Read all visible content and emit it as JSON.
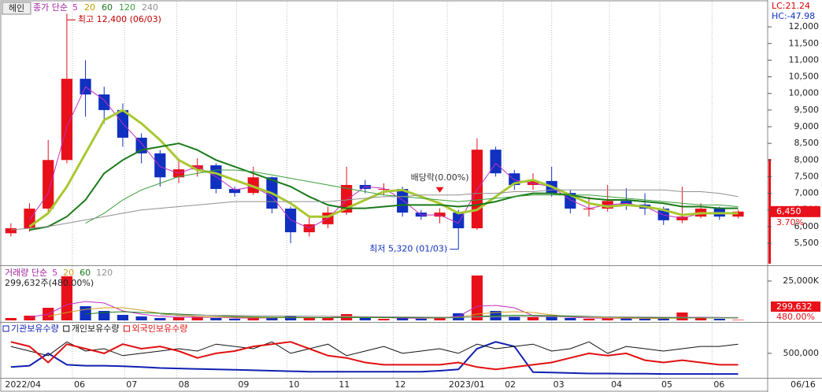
{
  "toolbar": {
    "button": "헤인"
  },
  "right_labels": {
    "lc": "LC:21.24",
    "hc": "HC:-47.98",
    "current_price": "6,450",
    "change": "3.70%",
    "current_volume": "299,632",
    "volume_ratio": "480.00%",
    "last_date": "06/16"
  },
  "chart_data": [
    {
      "type": "candlestick",
      "legend_prefix": "종가 단순",
      "up_color": "#e8101a",
      "down_color": "#1030c0",
      "xlim": [
        -0.5,
        40.5
      ],
      "xticks": [
        {
          "value": -0.4,
          "label": "2022/04"
        },
        {
          "value": 3.3,
          "label": "06"
        },
        {
          "value": 6.1,
          "label": "07"
        },
        {
          "value": 8.9,
          "label": "08"
        },
        {
          "value": 12.1,
          "label": "09"
        },
        {
          "value": 14.8,
          "label": "10"
        },
        {
          "value": 17.5,
          "label": "11"
        },
        {
          "value": 20.5,
          "label": "12"
        },
        {
          "value": 23.4,
          "label": "2023/01"
        },
        {
          "value": 26.4,
          "label": "02"
        },
        {
          "value": 29.0,
          "label": "03"
        },
        {
          "value": 32.1,
          "label": "04"
        },
        {
          "value": 34.8,
          "label": "05"
        },
        {
          "value": 37.6,
          "label": "06"
        }
      ],
      "ylim": [
        4885,
        12760
      ],
      "yticks": [
        {
          "value": 5500,
          "label": "5,500"
        },
        {
          "value": 6000,
          "label": "6,000"
        },
        {
          "value": 6500,
          "label": "6,500"
        },
        {
          "value": 7000,
          "label": "7,000"
        },
        {
          "value": 7500,
          "label": "7,500"
        },
        {
          "value": 8000,
          "label": "8,000"
        },
        {
          "value": 8500,
          "label": "8,500"
        },
        {
          "value": 9000,
          "label": "9,000"
        },
        {
          "value": 9500,
          "label": "9,500"
        },
        {
          "value": 10000,
          "label": "10,000"
        },
        {
          "value": 10500,
          "label": "10,500"
        },
        {
          "value": 11000,
          "label": "11,000"
        },
        {
          "value": 11500,
          "label": "11,500"
        },
        {
          "value": 12000,
          "label": "12,000"
        }
      ],
      "open": [
        5800,
        5950,
        6540,
        8000,
        10440,
        9970,
        9500,
        8670,
        8200,
        7480,
        7720,
        7840,
        7130,
        7010,
        7480,
        6540,
        5830,
        6070,
        6420,
        7250,
        7130,
        7130,
        6420,
        6300,
        6420,
        5950,
        8310,
        7600,
        7250,
        7370,
        7010,
        6540,
        6540,
        6770,
        6660,
        6540,
        6190,
        6300,
        6540,
        6300
      ],
      "high": [
        6100,
        6700,
        8600,
        12400,
        11000,
        10200,
        9700,
        8800,
        8300,
        8000,
        8050,
        7900,
        7200,
        7800,
        7500,
        6600,
        6300,
        6600,
        7800,
        7400,
        7300,
        7200,
        6500,
        6550,
        6500,
        8650,
        8400,
        7700,
        7600,
        7800,
        7100,
        6900,
        7250,
        7150,
        7000,
        6600,
        7200,
        6700,
        6600,
        6500
      ],
      "low": [
        5700,
        5850,
        6400,
        7900,
        9300,
        9100,
        8400,
        7900,
        7200,
        7300,
        7500,
        7000,
        6900,
        6950,
        6400,
        5500,
        5700,
        5950,
        6350,
        7000,
        6950,
        6300,
        6200,
        6100,
        5320,
        5900,
        7500,
        7100,
        7100,
        6900,
        6400,
        6300,
        6450,
        6500,
        6350,
        6050,
        6100,
        6250,
        6200,
        6250
      ],
      "close": [
        5950,
        6540,
        8000,
        10440,
        9970,
        9500,
        8670,
        8200,
        7480,
        7720,
        7840,
        7130,
        7010,
        7480,
        6540,
        5830,
        6070,
        6420,
        7250,
        7130,
        7130,
        6420,
        6300,
        6420,
        5950,
        8310,
        7600,
        7250,
        7370,
        7010,
        6540,
        6540,
        6770,
        6660,
        6540,
        6190,
        6300,
        6540,
        6300,
        6450
      ],
      "series": [
        {
          "name": "5",
          "color": "#c030c0",
          "width": 1,
          "values": [
            null,
            6200,
            7000,
            9000,
            10200,
            9800,
            9100,
            8500,
            7800,
            7600,
            7800,
            7500,
            7100,
            7200,
            6900,
            6200,
            5950,
            6250,
            6800,
            7200,
            7150,
            6800,
            6350,
            6350,
            6100,
            7100,
            7900,
            7400,
            7300,
            7200,
            6800,
            6550,
            6650,
            6700,
            6600,
            6350,
            6250,
            6400,
            6400,
            6400
          ]
        },
        {
          "name": "20",
          "color": "#a8c832",
          "width": 3,
          "values": [
            null,
            6000,
            6400,
            7200,
            8200,
            9200,
            9500,
            9100,
            8600,
            8000,
            7700,
            7600,
            7400,
            7200,
            7000,
            6700,
            6300,
            6300,
            6550,
            6800,
            7050,
            7100,
            6900,
            6700,
            6400,
            6500,
            6900,
            7300,
            7400,
            7200,
            6950,
            6700,
            6600,
            6650,
            6600,
            6500,
            6350,
            6400,
            6400,
            6400
          ]
        },
        {
          "name": "60",
          "color": "#1a7a1a",
          "width": 2,
          "values": [
            null,
            5900,
            6000,
            6300,
            6800,
            7600,
            8000,
            8300,
            8400,
            8500,
            8300,
            8000,
            7800,
            7600,
            7400,
            7200,
            6900,
            6650,
            6550,
            6550,
            6600,
            6650,
            6650,
            6650,
            6600,
            6650,
            6750,
            6900,
            7000,
            7000,
            6950,
            6850,
            6800,
            6800,
            6750,
            6700,
            6600,
            6600,
            6550,
            6550
          ]
        },
        {
          "name": "120",
          "color": "#3aa03a",
          "width": 1,
          "values": [
            null,
            null,
            null,
            null,
            6100,
            6400,
            6800,
            7100,
            7300,
            7500,
            7600,
            7700,
            7700,
            7650,
            7550,
            7450,
            7350,
            7250,
            7150,
            7050,
            6950,
            6900,
            6850,
            6800,
            6750,
            6800,
            6850,
            6900,
            6950,
            6950,
            6950,
            6950,
            6900,
            6850,
            6800,
            6750,
            6700,
            6650,
            6650,
            6600
          ]
        },
        {
          "name": "240",
          "color": "#909090",
          "width": 1,
          "values": [
            5900,
            5950,
            6000,
            6100,
            6200,
            6300,
            6400,
            6500,
            6550,
            6600,
            6650,
            6700,
            6750,
            6750,
            6750,
            6750,
            6750,
            6750,
            6800,
            6850,
            6900,
            6900,
            6950,
            6950,
            6950,
            7000,
            7000,
            7050,
            7050,
            7100,
            7100,
            7100,
            7100,
            7100,
            7100,
            7100,
            7050,
            7050,
            7000,
            6900
          ]
        }
      ],
      "annotations": [
        {
          "text": "최고 12,400 (06/03)",
          "x": 3,
          "y": 12400,
          "color": "#c00000",
          "side": "right"
        },
        {
          "text": "최저 5,320 (01/03)",
          "x": 24,
          "y": 5320,
          "color": "#1030c0",
          "side": "left"
        },
        {
          "text": "배당락(0.00%)",
          "x": 23,
          "y": 6900,
          "color": "#333333",
          "side": "center"
        }
      ]
    },
    {
      "type": "volume",
      "legend_prefix": "거래량 단순",
      "subtitle": "299,632주(480.00%)",
      "ylim": [
        0,
        33000
      ],
      "yticks": [
        {
          "value": 25000,
          "label": "25,000K"
        }
      ],
      "values": [
        1500,
        3000,
        8000,
        28000,
        9000,
        6000,
        3500,
        2500,
        1500,
        2000,
        2500,
        1500,
        1000,
        2000,
        1500,
        3000,
        1500,
        1500,
        4000,
        1500,
        1000,
        1500,
        1000,
        2000,
        4500,
        28500,
        6000,
        2500,
        2000,
        3000,
        1500,
        1000,
        1500,
        1500,
        1000,
        1000,
        5000,
        1500,
        1000,
        299.632
      ],
      "series": [
        {
          "name": "5",
          "color": "#c030c0",
          "width": 1,
          "values": [
            null,
            2000,
            4000,
            10000,
            12000,
            11000,
            6000,
            4000,
            2500,
            2000,
            2000,
            2000,
            1500,
            1500,
            1600,
            2000,
            1800,
            1700,
            2500,
            2200,
            1800,
            1500,
            1300,
            1600,
            2500,
            9000,
            9500,
            8000,
            3000,
            2500,
            2000,
            1500,
            1400,
            1400,
            1300,
            1200,
            2000,
            2000,
            1800,
            1500
          ]
        },
        {
          "name": "20",
          "color": "#d4a020",
          "width": 1,
          "values": [
            null,
            null,
            2500,
            5000,
            7000,
            8000,
            8000,
            6500,
            4500,
            3000,
            2500,
            2200,
            2000,
            1800,
            1700,
            1700,
            1700,
            1700,
            2000,
            2000,
            1900,
            1800,
            1600,
            1600,
            1800,
            4000,
            5000,
            5500,
            5000,
            3500,
            2500,
            2000,
            1600,
            1500,
            1400,
            1300,
            1500,
            1600,
            1600,
            1600
          ]
        },
        {
          "name": "60",
          "color": "#1a7a1a",
          "width": 1,
          "values": [
            null,
            null,
            null,
            null,
            4000,
            5000,
            5500,
            5000,
            4500,
            4000,
            3500,
            3000,
            2500,
            2200,
            2000,
            1900,
            1800,
            1800,
            1800,
            1800,
            1800,
            1800,
            1700,
            1700,
            1700,
            2500,
            3000,
            3200,
            3200,
            3000,
            2800,
            2500,
            2200,
            2000,
            1800,
            1600,
            1600,
            1600,
            1600,
            1600
          ]
        },
        {
          "name": "120",
          "color": "#909090",
          "width": 1,
          "values": [
            null,
            null,
            null,
            null,
            null,
            null,
            null,
            null,
            3500,
            3400,
            3300,
            3200,
            3100,
            3000,
            2900,
            2800,
            2700,
            2600,
            2500,
            2400,
            2300,
            2200,
            2100,
            2000,
            2000,
            2200,
            2300,
            2400,
            2400,
            2400,
            2300,
            2300,
            2200,
            2200,
            2100,
            2000,
            2000,
            1900,
            1900,
            1900
          ]
        }
      ]
    },
    {
      "type": "line",
      "ylim": [
        0,
        1133000
      ],
      "yticks": [
        {
          "value": 500000,
          "label": "500,000"
        }
      ],
      "series": [
        {
          "name": "기관보유수량",
          "color": "#1020b0",
          "width": 2,
          "values": [
            200000,
            230000,
            500000,
            250000,
            230000,
            230000,
            220000,
            200000,
            180000,
            170000,
            160000,
            150000,
            140000,
            130000,
            120000,
            110000,
            100000,
            100000,
            100000,
            100000,
            100000,
            100000,
            100000,
            120000,
            150000,
            600000,
            750000,
            650000,
            90000,
            80000,
            70000,
            60000,
            60000,
            55000,
            55000,
            50000,
            50000,
            50000,
            50000,
            50000
          ]
        },
        {
          "name": "개인보유수량",
          "color": "#111111",
          "width": 1,
          "values": [
            650000,
            550000,
            450000,
            750000,
            550000,
            600000,
            450000,
            500000,
            550000,
            600000,
            550000,
            700000,
            650000,
            600000,
            750000,
            500000,
            600000,
            700000,
            450000,
            550000,
            650000,
            500000,
            550000,
            600000,
            500000,
            700000,
            600000,
            650000,
            700000,
            550000,
            600000,
            750000,
            500000,
            650000,
            600000,
            550000,
            600000,
            650000,
            650000,
            700000
          ]
        },
        {
          "name": "외국인보유수량",
          "color": "#e01010",
          "width": 2,
          "values": [
            750000,
            650000,
            300000,
            700000,
            600000,
            500000,
            700000,
            600000,
            650000,
            550000,
            400000,
            500000,
            550000,
            650000,
            700000,
            750000,
            600000,
            450000,
            400000,
            300000,
            250000,
            250000,
            250000,
            250000,
            300000,
            200000,
            150000,
            200000,
            250000,
            300000,
            400000,
            500000,
            450000,
            500000,
            350000,
            300000,
            350000,
            300000,
            250000,
            250000
          ]
        }
      ]
    }
  ]
}
